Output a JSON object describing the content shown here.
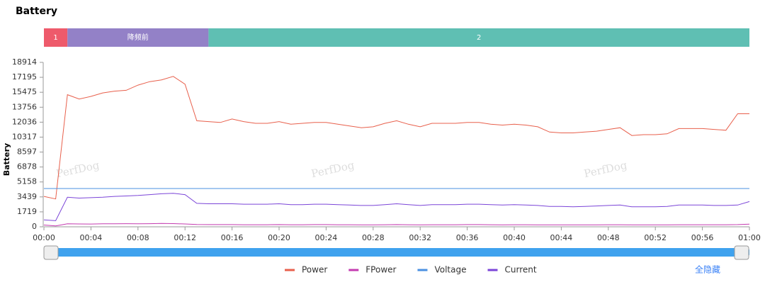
{
  "chart_data": {
    "type": "line",
    "title": "Battery",
    "y_label": "Battery",
    "watermark": "PerfDog",
    "hide_all": "全隐藏",
    "segments": [
      {
        "label": "1",
        "start": 0,
        "end": 2,
        "color": "#ee5a6b"
      },
      {
        "label": "降频前",
        "start": 2,
        "end": 14,
        "color": "#9381c7"
      },
      {
        "label": "2",
        "start": 14,
        "end": 60,
        "color": "#5fbfb3"
      }
    ],
    "x": [
      0,
      1,
      2,
      3,
      4,
      5,
      6,
      7,
      8,
      9,
      10,
      11,
      12,
      13,
      14,
      15,
      16,
      17,
      18,
      19,
      20,
      21,
      22,
      23,
      24,
      25,
      26,
      27,
      28,
      29,
      30,
      31,
      32,
      33,
      34,
      35,
      36,
      37,
      38,
      39,
      40,
      41,
      42,
      43,
      44,
      45,
      46,
      47,
      48,
      49,
      50,
      51,
      52,
      53,
      54,
      55,
      56,
      57,
      58,
      59,
      60
    ],
    "xlim": [
      0,
      60
    ],
    "xticks": [
      {
        "value": 0,
        "label": "00:00"
      },
      {
        "value": 4,
        "label": "00:04"
      },
      {
        "value": 8,
        "label": "00:08"
      },
      {
        "value": 12,
        "label": "00:12"
      },
      {
        "value": 16,
        "label": "00:16"
      },
      {
        "value": 20,
        "label": "00:20"
      },
      {
        "value": 24,
        "label": "00:24"
      },
      {
        "value": 28,
        "label": "00:28"
      },
      {
        "value": 32,
        "label": "00:32"
      },
      {
        "value": 36,
        "label": "00:36"
      },
      {
        "value": 40,
        "label": "00:40"
      },
      {
        "value": 44,
        "label": "00:44"
      },
      {
        "value": 48,
        "label": "00:48"
      },
      {
        "value": 52,
        "label": "00:52"
      },
      {
        "value": 56,
        "label": "00:56"
      },
      {
        "value": 60,
        "label": "01:00"
      }
    ],
    "ylim": [
      0,
      18914
    ],
    "yticks": [
      0,
      1719,
      3439,
      5158,
      6878,
      8597,
      10317,
      12036,
      13756,
      15475,
      17195,
      18914
    ],
    "series": [
      {
        "name": "Power",
        "color": "#e8604c",
        "values": [
          3500,
          3200,
          15200,
          14700,
          15000,
          15400,
          15600,
          15700,
          16300,
          16700,
          16900,
          17300,
          16400,
          12200,
          12100,
          12000,
          12400,
          12100,
          11900,
          11900,
          12100,
          11800,
          11900,
          12000,
          12000,
          11800,
          11600,
          11400,
          11500,
          11900,
          12200,
          11800,
          11500,
          11900,
          11900,
          11900,
          12000,
          12000,
          11800,
          11700,
          11800,
          11700,
          11500,
          10900,
          10800,
          10800,
          10900,
          11000,
          11200,
          11400,
          10500,
          10600,
          10600,
          10700,
          11300,
          11300,
          11300,
          11200,
          11100,
          13000,
          13000
        ]
      },
      {
        "name": "FPower",
        "color": "#c43bb0",
        "values": [
          200,
          100,
          350,
          330,
          320,
          340,
          350,
          360,
          350,
          360,
          380,
          370,
          330,
          260,
          250,
          250,
          250,
          240,
          240,
          240,
          250,
          240,
          240,
          250,
          250,
          240,
          240,
          230,
          230,
          240,
          250,
          240,
          230,
          240,
          240,
          240,
          250,
          250,
          240,
          230,
          240,
          240,
          230,
          220,
          220,
          220,
          230,
          230,
          240,
          240,
          230,
          230,
          230,
          230,
          240,
          240,
          240,
          240,
          240,
          250,
          300
        ]
      },
      {
        "name": "Voltage",
        "color": "#4a90e2",
        "values": [
          4400,
          4400,
          4400,
          4400,
          4400,
          4400,
          4400,
          4400,
          4400,
          4400,
          4400,
          4400,
          4400,
          4400,
          4400,
          4400,
          4400,
          4400,
          4400,
          4400,
          4400,
          4400,
          4400,
          4400,
          4400,
          4400,
          4400,
          4400,
          4400,
          4400,
          4400,
          4400,
          4400,
          4400,
          4400,
          4400,
          4400,
          4400,
          4400,
          4400,
          4400,
          4400,
          4400,
          4400,
          4400,
          4400,
          4400,
          4400,
          4400,
          4400,
          4400,
          4400,
          4400,
          4400,
          4400,
          4400,
          4400,
          4400,
          4400,
          4400,
          4400
        ]
      },
      {
        "name": "Current",
        "color": "#7b45d8",
        "values": [
          800,
          700,
          3400,
          3300,
          3350,
          3400,
          3500,
          3550,
          3600,
          3700,
          3800,
          3850,
          3700,
          2700,
          2650,
          2650,
          2650,
          2600,
          2600,
          2600,
          2650,
          2550,
          2550,
          2600,
          2600,
          2550,
          2500,
          2450,
          2450,
          2550,
          2650,
          2550,
          2450,
          2550,
          2550,
          2550,
          2600,
          2600,
          2550,
          2500,
          2550,
          2500,
          2450,
          2350,
          2350,
          2300,
          2350,
          2400,
          2450,
          2500,
          2300,
          2300,
          2300,
          2350,
          2500,
          2500,
          2500,
          2450,
          2450,
          2500,
          2900
        ]
      }
    ]
  }
}
